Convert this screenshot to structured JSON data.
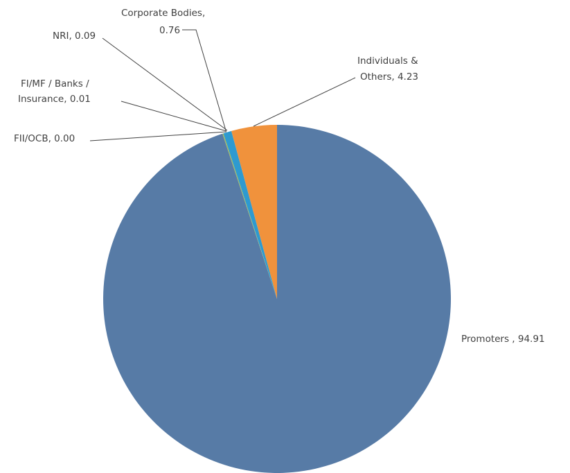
{
  "chart_data": {
    "type": "pie",
    "title": "",
    "slices": [
      {
        "label": "Promoters",
        "value": 94.91,
        "color": "#577BA6",
        "label_lines": [
          "Promoters , 94.91"
        ]
      },
      {
        "label": "FII/OCB",
        "value": 0.0,
        "color": "#4F81BD",
        "label_lines": [
          "FII/OCB, 0.00"
        ]
      },
      {
        "label": "FI/MF / Banks / Insurance",
        "value": 0.01,
        "color": "#8064A2",
        "label_lines": [
          "FI/MF / Banks /",
          "Insurance, 0.01"
        ]
      },
      {
        "label": "NRI",
        "value": 0.09,
        "color": "#9BBB59",
        "label_lines": [
          "NRI, 0.09"
        ]
      },
      {
        "label": "Corporate Bodies",
        "value": 0.76,
        "color": "#2E9AD0",
        "label_lines": [
          "Corporate Bodies,",
          "0.76"
        ]
      },
      {
        "label": "Individuals & Others",
        "value": 4.23,
        "color": "#F0923C",
        "label_lines": [
          "Individuals &",
          "Others, 4.23"
        ]
      }
    ],
    "legend": "none",
    "data_labels": "outside-with-leader-lines"
  }
}
